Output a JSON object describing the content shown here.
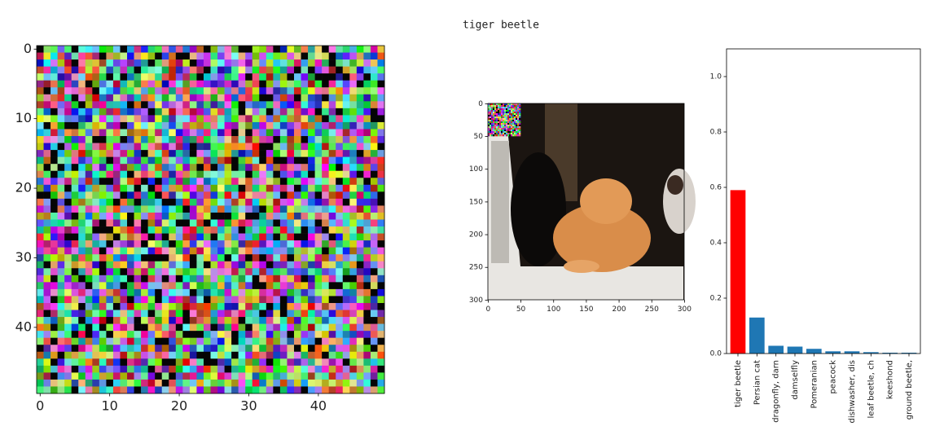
{
  "output_text": "tiger beetle",
  "chart_data": [
    {
      "type": "image",
      "xlim": [
        -0.5,
        49.5
      ],
      "ylim": [
        49.5,
        -0.5
      ],
      "xticks": [
        0,
        10,
        20,
        30,
        40
      ],
      "yticks": [
        0,
        10,
        20,
        30,
        40
      ]
    },
    {
      "type": "image",
      "xlim": [
        -0.5,
        299.5
      ],
      "ylim": [
        299.5,
        -0.5
      ],
      "xticks": [
        0,
        50,
        100,
        150,
        200,
        250,
        300
      ],
      "yticks": [
        0,
        50,
        100,
        150,
        200,
        250,
        300
      ]
    },
    {
      "type": "bar",
      "categories": [
        "tiger beetle",
        "Persian cat",
        "dragonfly, darn",
        "damselfly",
        "Pomeranian",
        "peacock",
        "dishwasher, dis",
        "leaf beetle, ch",
        "keeshond",
        "ground beetle,"
      ],
      "values": [
        0.59,
        0.13,
        0.028,
        0.025,
        0.017,
        0.008,
        0.008,
        0.005,
        0.003,
        0.003
      ],
      "colors": [
        "#ff0000",
        "#1f77b4",
        "#1f77b4",
        "#1f77b4",
        "#1f77b4",
        "#1f77b4",
        "#1f77b4",
        "#1f77b4",
        "#1f77b4",
        "#1f77b4"
      ],
      "xlim": [
        -0.6,
        9.6
      ],
      "ylim": [
        0,
        1.1
      ],
      "yticks": [
        {
          "value": 0,
          "label": "0.0"
        },
        0.2,
        0.4,
        0.6,
        0.8,
        {
          "value": 1,
          "label": "1.0"
        }
      ]
    }
  ]
}
